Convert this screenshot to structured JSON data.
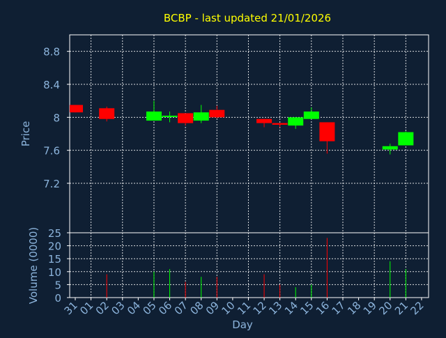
{
  "chart_data": {
    "type": "candlestick",
    "title": "BCBP - last updated 21/01/2026",
    "xlabel": "Day",
    "price_panel": {
      "ylabel": "Price",
      "yticks": [
        "8.8",
        "8.4",
        "8",
        "7.6",
        "7.2"
      ],
      "ylim": [
        6.6,
        9.0
      ]
    },
    "volume_panel": {
      "ylabel": "Volume (0000)",
      "yticks": [
        "25",
        "20",
        "15",
        "10",
        "5",
        "0"
      ],
      "ylim": [
        0,
        25
      ]
    },
    "x_tick_labels": [
      "31",
      "01",
      "02",
      "03",
      "04",
      "05",
      "06",
      "07",
      "08",
      "09",
      "10",
      "11",
      "12",
      "13",
      "14",
      "15",
      "16",
      "17",
      "18",
      "19",
      "20",
      "21",
      "22"
    ],
    "colors": {
      "background": "#0f1f33",
      "title": "#ffff00",
      "axis_text": "#8cb4dc",
      "up": "#00ff00",
      "down": "#ff0000",
      "grid": "#ffffff"
    },
    "candles": [
      {
        "day": "31",
        "open": 8.15,
        "close": 8.06,
        "high": 8.15,
        "low": 8.06,
        "volume": 0
      },
      {
        "day": "02",
        "open": 8.11,
        "close": 7.98,
        "high": 8.13,
        "low": 7.95,
        "volume": 9
      },
      {
        "day": "05",
        "open": 7.96,
        "close": 8.07,
        "high": 8.2,
        "low": 7.96,
        "volume": 10
      },
      {
        "day": "06",
        "open": 8.01,
        "close": 8.02,
        "high": 8.07,
        "low": 7.94,
        "volume": 11
      },
      {
        "day": "07",
        "open": 8.05,
        "close": 7.93,
        "high": 8.05,
        "low": 7.9,
        "volume": 6
      },
      {
        "day": "08",
        "open": 7.96,
        "close": 8.06,
        "high": 8.15,
        "low": 7.93,
        "volume": 8
      },
      {
        "day": "09",
        "open": 8.09,
        "close": 8.0,
        "high": 8.14,
        "low": 7.99,
        "volume": 8
      },
      {
        "day": "12",
        "open": 7.98,
        "close": 7.93,
        "high": 7.98,
        "low": 7.88,
        "volume": 9
      },
      {
        "day": "13",
        "open": 7.93,
        "close": 7.91,
        "high": 7.93,
        "low": 7.88,
        "volume": 5
      },
      {
        "day": "14",
        "open": 7.9,
        "close": 8.0,
        "high": 8.0,
        "low": 7.86,
        "volume": 4
      },
      {
        "day": "15",
        "open": 7.98,
        "close": 8.07,
        "high": 8.12,
        "low": 7.98,
        "volume": 5
      },
      {
        "day": "16",
        "open": 7.94,
        "close": 7.71,
        "high": 7.94,
        "low": 7.56,
        "volume": 23
      },
      {
        "day": "20",
        "open": 7.61,
        "close": 7.65,
        "high": 7.68,
        "low": 7.55,
        "volume": 14
      },
      {
        "day": "21",
        "open": 7.66,
        "close": 7.82,
        "high": 7.83,
        "low": 7.66,
        "volume": 11
      }
    ]
  }
}
